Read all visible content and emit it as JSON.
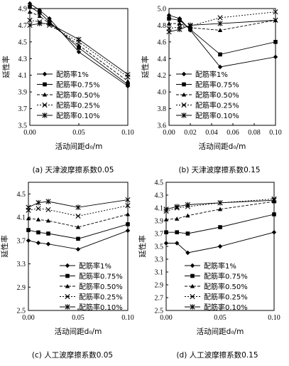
{
  "chart_data": [
    {
      "type": "line",
      "caption": "(a) 天津波摩擦系数0.05",
      "xlabel": "活动间距d₀/m",
      "ylabel": "延性率",
      "xlim": [
        0.0,
        0.1
      ],
      "ylim": [
        3.5,
        4.9
      ],
      "xticks": [
        "0.00",
        "0.05",
        "0.10"
      ],
      "yticks": [
        "3.5",
        "3.7",
        "3.9",
        "4.1",
        "4.3",
        "4.5",
        "4.7",
        "4.9"
      ],
      "x": [
        0.0,
        0.01,
        0.02,
        0.05,
        0.1
      ],
      "series": [
        {
          "name": "配筋率1%",
          "values": [
            4.96,
            4.88,
            4.78,
            4.38,
            3.97
          ]
        },
        {
          "name": "配筋率0.75%",
          "values": [
            4.92,
            4.85,
            4.74,
            4.43,
            3.99
          ]
        },
        {
          "name": "配筋率0.50%",
          "values": [
            4.86,
            4.81,
            4.72,
            4.46,
            4.03
          ]
        },
        {
          "name": "配筋率0.25%",
          "values": [
            4.76,
            4.74,
            4.7,
            4.5,
            4.08
          ]
        },
        {
          "name": "配筋率0.10%",
          "values": [
            4.7,
            4.72,
            4.72,
            4.53,
            4.11
          ]
        }
      ],
      "legend": "bottom-left"
    },
    {
      "type": "line",
      "caption": "(b) 天津波摩擦系数0.15",
      "xlabel": "活动间距d₀/m",
      "ylabel": "延性率",
      "xlim": [
        0.0,
        0.1
      ],
      "ylim": [
        3.6,
        5.0
      ],
      "xticks": [
        "0.00",
        "0.02",
        "0.04",
        "0.06",
        "0.08",
        "0.10"
      ],
      "yticks": [
        "3.6",
        "3.8",
        "4.0",
        "4.2",
        "4.4",
        "4.6",
        "4.8",
        "5.0"
      ],
      "x": [
        0.0,
        0.01,
        0.02,
        0.048,
        0.1
      ],
      "series": [
        {
          "name": "配筋率1%",
          "values": [
            4.92,
            4.88,
            4.74,
            4.3,
            4.42
          ]
        },
        {
          "name": "配筋率0.75%",
          "values": [
            4.88,
            4.86,
            4.75,
            4.45,
            4.6
          ]
        },
        {
          "name": "配筋率0.50%",
          "values": [
            4.82,
            4.82,
            4.77,
            4.74,
            4.86
          ]
        },
        {
          "name": "配筋率0.25%",
          "values": [
            4.76,
            4.78,
            4.79,
            4.89,
            4.96
          ]
        },
        {
          "name": "配筋率0.10%",
          "values": [
            4.72,
            4.75,
            4.8,
            4.82,
            4.86
          ]
        }
      ],
      "legend": "bottom-right"
    },
    {
      "type": "line",
      "caption": "(c) 人工波摩擦系数0.05",
      "xlabel": "活动间距d₀/m",
      "ylabel": "延性率",
      "xlim": [
        0.0,
        0.1
      ],
      "ylim": [
        2.5,
        4.7
      ],
      "xticks": [
        "0.00",
        "0.05",
        "0.10"
      ],
      "yticks": [
        "2.5",
        "2.9",
        "3.3",
        "3.7",
        "4.1",
        "4.5"
      ],
      "x": [
        0.0,
        0.01,
        0.02,
        0.05,
        0.1
      ],
      "series": [
        {
          "name": "配筋率1%",
          "values": [
            3.7,
            3.66,
            3.64,
            3.55,
            3.87
          ]
        },
        {
          "name": "配筋率0.75%",
          "values": [
            3.88,
            3.84,
            3.82,
            3.73,
            3.98
          ]
        },
        {
          "name": "配筋率0.50%",
          "values": [
            4.08,
            4.06,
            4.04,
            3.93,
            4.15
          ]
        },
        {
          "name": "配筋率0.25%",
          "values": [
            4.22,
            4.25,
            4.23,
            4.12,
            4.3
          ]
        },
        {
          "name": "配筋率0.10%",
          "values": [
            4.27,
            4.35,
            4.37,
            4.27,
            4.4
          ]
        }
      ],
      "legend": "bottom-right"
    },
    {
      "type": "line",
      "caption": "(d) 人工波摩擦系数0.15",
      "xlabel": "活动间距d₀/m",
      "ylabel": "延性率",
      "xlim": [
        0.0,
        0.1
      ],
      "ylim": [
        2.5,
        4.5
      ],
      "xticks": [
        "0.00",
        "0.05",
        "0.10"
      ],
      "yticks": [
        "2.5",
        "2.7",
        "2.9",
        "3.1",
        "3.3",
        "3.5",
        "3.7",
        "3.9",
        "4.1",
        "4.3",
        "4.5"
      ],
      "x": [
        0.0,
        0.01,
        0.02,
        0.05,
        0.1
      ],
      "series": [
        {
          "name": "配筋率1%",
          "values": [
            3.55,
            3.55,
            3.4,
            3.5,
            3.72
          ]
        },
        {
          "name": "配筋率0.75%",
          "values": [
            3.72,
            3.72,
            3.7,
            3.8,
            4.0
          ]
        },
        {
          "name": "配筋率0.50%",
          "values": [
            3.92,
            3.93,
            3.98,
            4.08,
            4.2
          ]
        },
        {
          "name": "配筋率0.25%",
          "values": [
            4.05,
            4.1,
            4.12,
            4.18,
            4.24
          ]
        },
        {
          "name": "配筋率0.10%",
          "values": [
            4.08,
            4.12,
            4.15,
            4.18,
            4.22
          ]
        }
      ],
      "legend": "bottom-right"
    }
  ]
}
